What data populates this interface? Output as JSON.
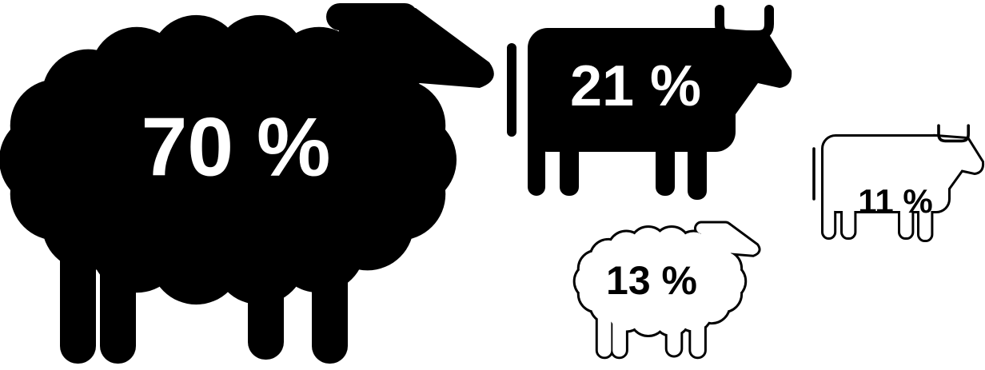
{
  "figures": [
    {
      "label": "70 %"
    },
    {
      "label": "21 %"
    },
    {
      "label": "13 %"
    },
    {
      "label": "11 %"
    }
  ]
}
